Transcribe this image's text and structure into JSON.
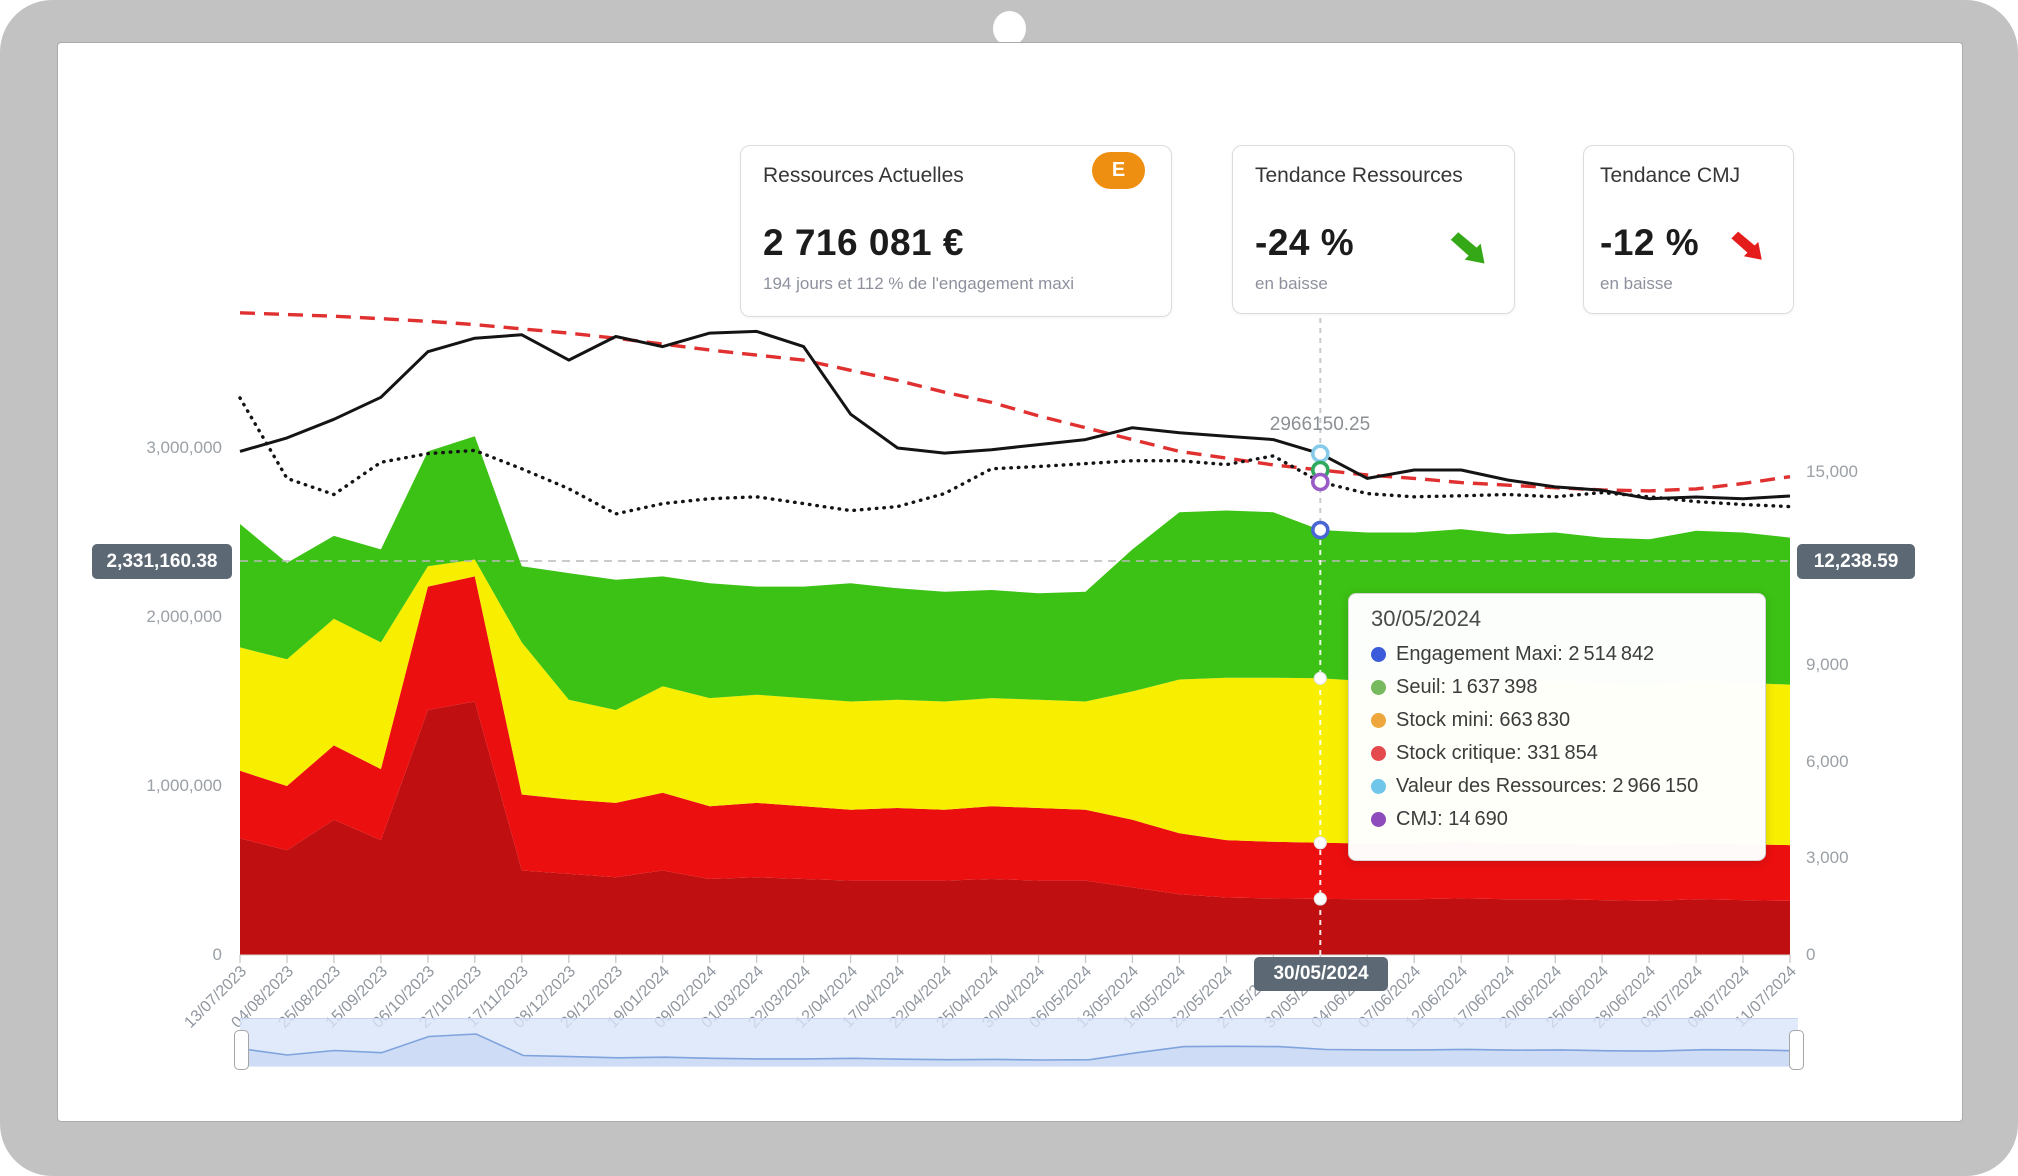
{
  "frame": {
    "type": "tablet-mockup"
  },
  "cards": {
    "ressources": {
      "title": "Ressources Actuelles",
      "badge": "E",
      "badge_color": "#ef8f11",
      "value": "2 716 081 €",
      "caption": "194 jours et 112 % de l'engagement maxi"
    },
    "tendance_ressources": {
      "title": "Tendance Ressources",
      "value": "-24 %",
      "caption": "en baisse",
      "direction": "down",
      "arrow_color": "#35a817"
    },
    "tendance_cmj": {
      "title": "Tendance CMJ",
      "value": "-12 %",
      "caption": "en baisse",
      "direction": "down",
      "arrow_color": "#e51c1c"
    }
  },
  "chart_data": {
    "type": "area",
    "subtype": "stacked threshold bands + lines combo, dual y-axis",
    "grid": "off",
    "categories": [
      "13/07/2023",
      "04/08/2023",
      "25/08/2023",
      "15/09/2023",
      "06/10/2023",
      "27/10/2023",
      "17/11/2023",
      "08/12/2023",
      "29/12/2023",
      "19/01/2024",
      "09/02/2024",
      "01/03/2024",
      "22/03/2024",
      "12/04/2024",
      "17/04/2024",
      "22/04/2024",
      "25/04/2024",
      "30/04/2024",
      "06/05/2024",
      "13/05/2024",
      "16/05/2024",
      "22/05/2024",
      "27/05/2024",
      "30/05/2024",
      "04/06/2024",
      "07/06/2024",
      "12/06/2024",
      "17/06/2024",
      "20/06/2024",
      "25/06/2024",
      "28/06/2024",
      "03/07/2024",
      "08/07/2024",
      "11/07/2024"
    ],
    "left_axis": {
      "labels": [
        "3,000,000",
        "2,000,000",
        "1,000,000",
        "0"
      ],
      "values": [
        3000000,
        2000000,
        1000000,
        0
      ],
      "max_px_value_per_million": true
    },
    "right_axis": {
      "labels": [
        "15,000",
        "9,000",
        "6,000",
        "3,000",
        "0"
      ],
      "values": [
        15000,
        9000,
        6000,
        3000,
        0
      ]
    },
    "series": [
      {
        "name": "Engagement Maxi",
        "axis": "left",
        "style": "band-top",
        "band_color": "#3cc214",
        "dot_color": "#3b5bdb",
        "values": [
          2550000,
          2320000,
          2480000,
          2400000,
          2980000,
          3070000,
          2300000,
          2260000,
          2220000,
          2240000,
          2200000,
          2180000,
          2180000,
          2200000,
          2170000,
          2150000,
          2160000,
          2140000,
          2150000,
          2400000,
          2620000,
          2630000,
          2620000,
          2514842,
          2500000,
          2500000,
          2520000,
          2490000,
          2500000,
          2470000,
          2460000,
          2510000,
          2500000,
          2470000
        ]
      },
      {
        "name": "Seuil",
        "axis": "left",
        "style": "band-top",
        "band_color": "#f8ee00",
        "dot_color": "#76b95e",
        "values": [
          1820000,
          1750000,
          1990000,
          1850000,
          2300000,
          2340000,
          1850000,
          1510000,
          1450000,
          1590000,
          1520000,
          1540000,
          1520000,
          1500000,
          1510000,
          1500000,
          1520000,
          1510000,
          1500000,
          1560000,
          1630000,
          1640000,
          1640000,
          1637398,
          1620000,
          1620000,
          1630000,
          1620000,
          1620000,
          1610000,
          1600000,
          1620000,
          1610000,
          1600000
        ]
      },
      {
        "name": "Stock mini",
        "axis": "left",
        "style": "band-top",
        "band_color": "#ec0f0f",
        "dot_color": "#eda73c",
        "values": [
          1090000,
          1000000,
          1240000,
          1100000,
          2180000,
          2240000,
          950000,
          920000,
          900000,
          960000,
          880000,
          900000,
          880000,
          860000,
          870000,
          860000,
          880000,
          870000,
          860000,
          800000,
          720000,
          680000,
          670000,
          663830,
          660000,
          660000,
          670000,
          660000,
          660000,
          650000,
          650000,
          660000,
          655000,
          650000
        ]
      },
      {
        "name": "Stock critique",
        "axis": "left",
        "style": "band-top",
        "band_color": "#bf0f10",
        "dot_color": "#e4494d",
        "values": [
          690000,
          620000,
          800000,
          680000,
          1450000,
          1500000,
          500000,
          480000,
          460000,
          500000,
          450000,
          460000,
          450000,
          440000,
          440000,
          440000,
          450000,
          440000,
          440000,
          400000,
          360000,
          340000,
          335000,
          331854,
          330000,
          330000,
          335000,
          330000,
          330000,
          325000,
          320000,
          330000,
          325000,
          320000
        ]
      },
      {
        "name": "Valeur des Ressources",
        "axis": "left",
        "style": "solid-line",
        "color": "#141414",
        "dot_color": "#6fc6ea",
        "values": [
          2980000,
          3060000,
          3170000,
          3300000,
          3570000,
          3650000,
          3670000,
          3520000,
          3660000,
          3600000,
          3680000,
          3690000,
          3600000,
          3200000,
          3000000,
          2970000,
          2990000,
          3020000,
          3050000,
          3120000,
          3090000,
          3070000,
          3050000,
          2966150.25,
          2820000,
          2870000,
          2870000,
          2810000,
          2770000,
          2750000,
          2700000,
          2710000,
          2700000,
          2716081
        ]
      },
      {
        "name": "CMJ",
        "axis": "right",
        "style": "dotted-line",
        "color": "#141414",
        "dot_color": "#8d4bbb",
        "values": [
          17300,
          14800,
          14300,
          15300,
          15570,
          15670,
          15100,
          14480,
          13700,
          14020,
          14170,
          14230,
          14020,
          13800,
          13925,
          14330,
          15100,
          15170,
          15260,
          15350,
          15350,
          15230,
          15500,
          14690,
          14330,
          14230,
          14260,
          14300,
          14230,
          14360,
          14230,
          14080,
          13990,
          13925
        ]
      },
      {
        "name": "Tendance",
        "axis": "left",
        "style": "dashed-line",
        "color": "#e03030",
        "values": [
          3800000,
          3790000,
          3780000,
          3765000,
          3750000,
          3730000,
          3705000,
          3680000,
          3650000,
          3615000,
          3580000,
          3550000,
          3520000,
          3460000,
          3400000,
          3330000,
          3270000,
          3190000,
          3120000,
          3050000,
          2980000,
          2940000,
          2900000,
          2870000,
          2840000,
          2820000,
          2795000,
          2780000,
          2765000,
          2752000,
          2746000,
          2758000,
          2790000,
          2830000
        ]
      }
    ],
    "crosshair": {
      "category_index": 23,
      "date": "30/05/2024",
      "left_badge": "2,331,160.38",
      "right_badge": "12,238.59",
      "hline_value": 2331160.38,
      "annotation": "2966150.25",
      "point_values": {
        "engagement_maxi": 2514842,
        "seuil": 1637398,
        "stock_mini": 663830,
        "stock_critique": 331854,
        "ressources": 2966150.25,
        "cmj": 14690
      },
      "ring_colors": {
        "ressources": "#86cbe9",
        "tendance": "#2fa95e",
        "cmj": "#9a5bc7",
        "engagement_maxi": "#4a66d4"
      }
    },
    "tooltip": {
      "date": "30/05/2024",
      "rows": [
        {
          "color": "#3b5bdb",
          "label": "Engagement Maxi",
          "value": "2 514 842"
        },
        {
          "color": "#76b95e",
          "label": "Seuil",
          "value": "1 637 398"
        },
        {
          "color": "#eda73c",
          "label": "Stock mini",
          "value": "663 830"
        },
        {
          "color": "#e4494d",
          "label": "Stock critique",
          "value": "331 854"
        },
        {
          "color": "#6fc6ea",
          "label": "Valeur des Ressources",
          "value": "2 966 150"
        },
        {
          "color": "#8d4bbb",
          "label": "CMJ",
          "value": "14 690"
        }
      ]
    }
  },
  "navigator": {
    "preview_series": "Engagement Maxi",
    "track_color": "#d8e5fa",
    "line_color": "#7fa3dd"
  }
}
